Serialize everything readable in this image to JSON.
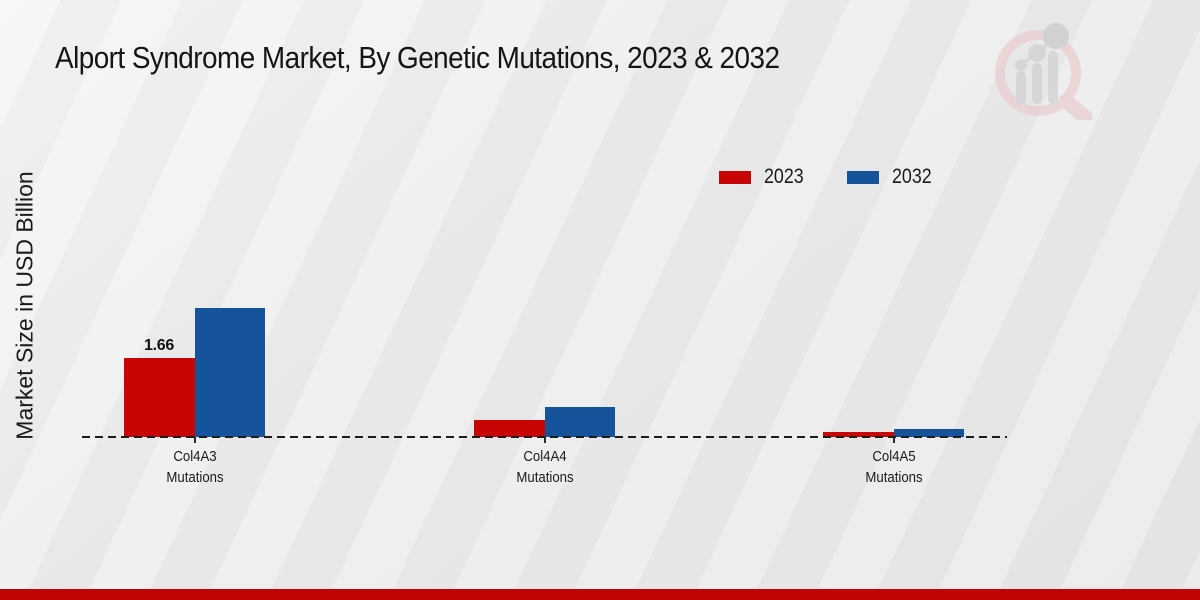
{
  "header": {
    "title": "Alport Syndrome Market, By Genetic Mutations, 2023 & 2032"
  },
  "y_axis": {
    "label": "Market Size in USD Billion"
  },
  "legend": {
    "position": "top-right",
    "items": [
      {
        "label": "2023",
        "color": "#c70504"
      },
      {
        "label": "2032",
        "color": "#15539b"
      }
    ]
  },
  "branding": {
    "icon": "magnifier-bar-chart-logo",
    "ring_color": "#eacfd2",
    "bars_color": "#d3d3d6"
  },
  "footer": {
    "accent_color": "#c00404"
  },
  "chart_data": {
    "type": "bar",
    "title": "Alport Syndrome Market, By Genetic Mutations, 2023 & 2032",
    "xlabel": "",
    "ylabel": "Market Size in USD Billion",
    "unit": "USD Billion",
    "categories": [
      [
        "Col4A3",
        "Mutations"
      ],
      [
        "Col4A4",
        "Mutations"
      ],
      [
        "Col4A5",
        "Mutations"
      ]
    ],
    "series": [
      {
        "name": "2023",
        "color": "#c70504",
        "values": [
          1.66,
          0.35,
          0.1
        ]
      },
      {
        "name": "2032",
        "color": "#15539b",
        "values": [
          2.7,
          0.62,
          0.17
        ]
      }
    ],
    "annotations": [
      {
        "series": "2023",
        "category_index": 0,
        "text": "1.66"
      }
    ],
    "ylim": [
      0,
      3.78
    ],
    "grid": false,
    "baseline_style": "dashed",
    "legend_position": "top-right"
  }
}
